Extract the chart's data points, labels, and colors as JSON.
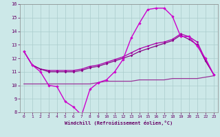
{
  "xlabel": "Windchill (Refroidissement éolien,°C)",
  "x": [
    0,
    1,
    2,
    3,
    4,
    5,
    6,
    7,
    8,
    9,
    10,
    11,
    12,
    13,
    14,
    15,
    16,
    17,
    18,
    19,
    20,
    21,
    22,
    23
  ],
  "line1": [
    12.5,
    11.5,
    11.0,
    10.0,
    9.9,
    8.8,
    8.4,
    7.8,
    9.7,
    10.2,
    10.4,
    11.0,
    11.9,
    13.5,
    14.6,
    15.6,
    15.7,
    15.7,
    15.1,
    13.6,
    13.6,
    12.9,
    12.0,
    10.8
  ],
  "line2": [
    12.5,
    11.5,
    11.2,
    11.1,
    11.1,
    11.1,
    11.1,
    11.2,
    11.4,
    11.5,
    11.7,
    11.9,
    12.1,
    12.4,
    12.7,
    12.9,
    13.1,
    13.2,
    13.4,
    13.8,
    13.6,
    13.2,
    11.9,
    10.8
  ],
  "line3": [
    12.5,
    11.5,
    11.2,
    11.0,
    11.0,
    11.0,
    11.0,
    11.1,
    11.3,
    11.4,
    11.6,
    11.8,
    12.0,
    12.2,
    12.5,
    12.7,
    12.9,
    13.1,
    13.3,
    13.7,
    13.4,
    13.0,
    11.8,
    10.8
  ],
  "line4": [
    10.1,
    10.1,
    10.1,
    10.1,
    10.1,
    10.1,
    10.1,
    10.1,
    10.1,
    10.2,
    10.3,
    10.3,
    10.3,
    10.3,
    10.4,
    10.4,
    10.4,
    10.4,
    10.5,
    10.5,
    10.5,
    10.5,
    10.6,
    10.7
  ],
  "line_color1": "#cc00cc",
  "line_color2": "#aa00aa",
  "line_color3": "#880088",
  "line_color4": "#993399",
  "bg_color": "#cce8e8",
  "grid_color": "#aacccc",
  "ylim": [
    8,
    16
  ],
  "xlim": [
    -0.5,
    23.5
  ],
  "yticks": [
    8,
    9,
    10,
    11,
    12,
    13,
    14,
    15,
    16
  ],
  "xticks": [
    0,
    1,
    2,
    3,
    4,
    5,
    6,
    7,
    8,
    9,
    10,
    11,
    12,
    13,
    14,
    15,
    16,
    17,
    18,
    19,
    20,
    21,
    22,
    23
  ]
}
